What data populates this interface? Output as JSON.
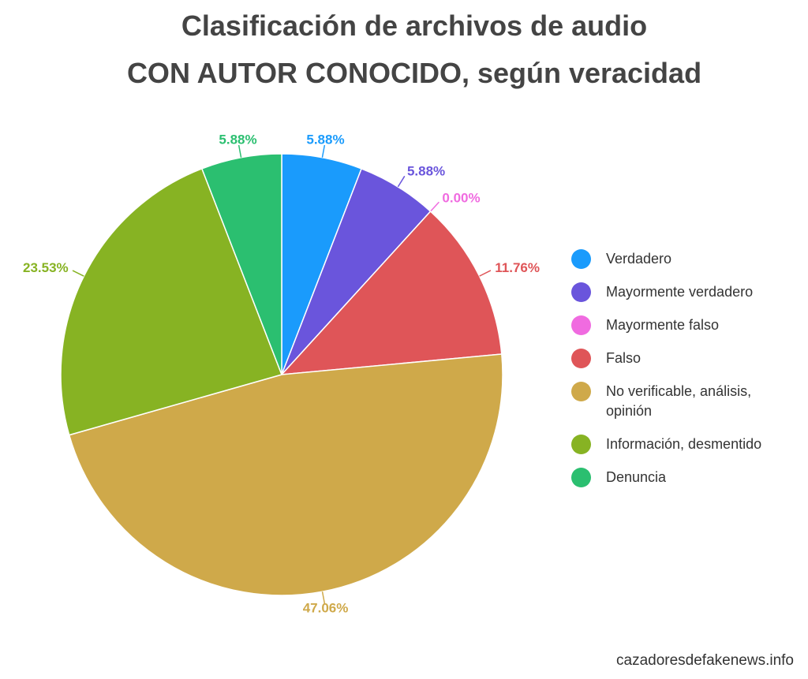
{
  "chart_data": {
    "type": "pie",
    "title": [
      "Clasificación de archivos de audio",
      "CON AUTOR CONOCIDO, según veracidad"
    ],
    "categories": [
      "Verdadero",
      "Mayormente verdadero",
      "Mayormente falso",
      "Falso",
      "No verificable, análisis, opinión",
      "Información, desmentido",
      "Denuncia"
    ],
    "values": [
      5.88,
      5.88,
      0.0,
      11.76,
      47.06,
      23.53,
      5.88
    ],
    "value_labels": [
      "5.88%",
      "5.88%",
      "0.00%",
      "11.76%",
      "47.06%",
      "23.53%",
      "5.88%"
    ],
    "colors": [
      "#1a9bfc",
      "#6a55dc",
      "#f06be0",
      "#df5558",
      "#cfa94a",
      "#87b323",
      "#2bbf70"
    ],
    "legend": "right",
    "source": "cazadoresdefakenews.info"
  }
}
